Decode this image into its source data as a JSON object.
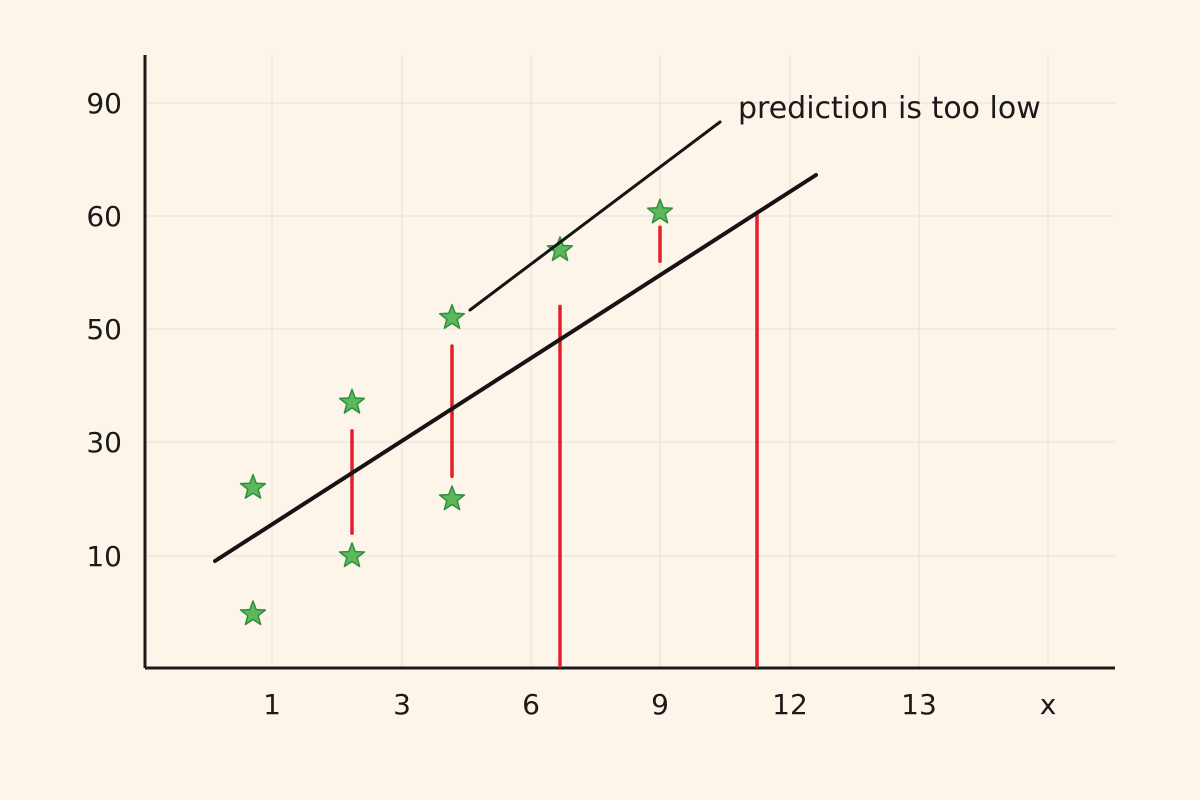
{
  "chart_data": {
    "type": "scatter",
    "title": "",
    "xlabel": "",
    "ylabel": "",
    "x_ticks": [
      "1",
      "3",
      "6",
      "9",
      "12",
      "13",
      "x"
    ],
    "y_ticks": [
      "90",
      "60",
      "50",
      "30",
      "10"
    ],
    "grid": true,
    "legend": "none",
    "points": [
      {
        "x": "1",
        "y": 22
      },
      {
        "x": "1",
        "y": 0
      },
      {
        "x": "3",
        "y": 37
      },
      {
        "x": "3",
        "y": 10
      },
      {
        "x": "6",
        "y": 51
      },
      {
        "x": "6",
        "y": 20
      },
      {
        "x": "6",
        "y": 57
      },
      {
        "x": "9",
        "y": 61
      }
    ],
    "fit_line": {
      "start": {
        "x": "1",
        "y": 10
      },
      "end": {
        "x": "12",
        "y": 64
      }
    },
    "residual_segments": [
      {
        "x": "3",
        "y_from": 14,
        "y_to": 32
      },
      {
        "x": "6",
        "y_from": 24,
        "y_to": 47
      },
      {
        "x": "6",
        "y_from": -10,
        "y_to": 52
      },
      {
        "x": "9",
        "y_from": 56,
        "y_to": 59
      },
      {
        "x": "12",
        "y_from": -10,
        "y_to": 61
      }
    ],
    "annotation": {
      "text": "prediction is too low"
    },
    "colors": {
      "background": "#fdf4ea",
      "points": "#5cb85c",
      "residuals": "#e0202a",
      "fit_line": "#141414"
    }
  }
}
